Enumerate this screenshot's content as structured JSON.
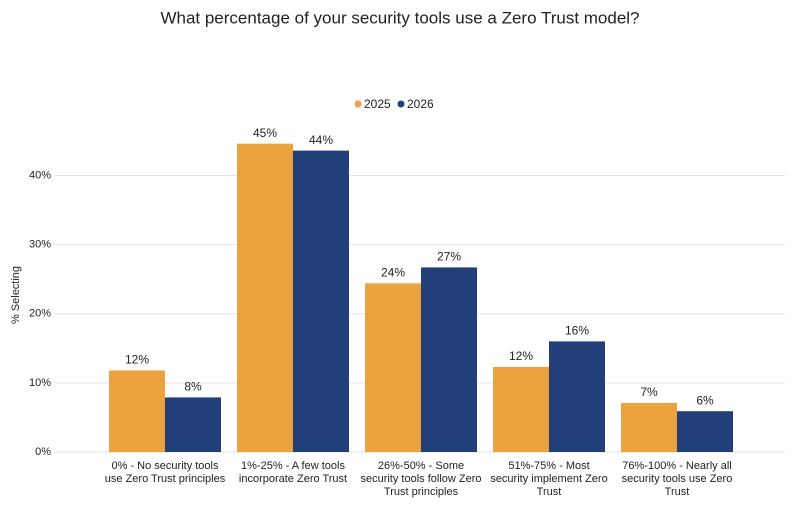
{
  "chart_data": {
    "type": "bar",
    "title": "What percentage of your security tools use a Zero Trust model?",
    "y_label": "% Selecting",
    "categories": [
      "0% - No security tools use Zero Trust principles",
      "1%-25% - A few tools incorporate Zero Trust",
      "26%-50% - Some security tools follow Zero Trust principles",
      "51%-75% - Most security implement Zero Trust",
      "76%-100% - Nearly all security tools use Zero Trust"
    ],
    "series": [
      {
        "name": "2025",
        "color": "#eba23f",
        "values": [
          11.8,
          44.6,
          24.4,
          12.3,
          7.1
        ],
        "value_labels": [
          "12%",
          "45%",
          "24%",
          "12%",
          "7%"
        ]
      },
      {
        "name": "2026",
        "color": "#233f7a",
        "values": [
          7.9,
          43.6,
          26.7,
          16.0,
          5.9
        ],
        "value_labels": [
          "8%",
          "44%",
          "27%",
          "16%",
          "6%"
        ]
      }
    ],
    "ylim": [
      0,
      46
    ],
    "yticks": [
      {
        "value": 0,
        "label": "0%"
      },
      {
        "value": 10,
        "label": "10%"
      },
      {
        "value": 20,
        "label": "20%"
      },
      {
        "value": 30,
        "label": "30%"
      },
      {
        "value": 40,
        "label": "40%"
      }
    ],
    "grid": true,
    "legend": "top"
  }
}
